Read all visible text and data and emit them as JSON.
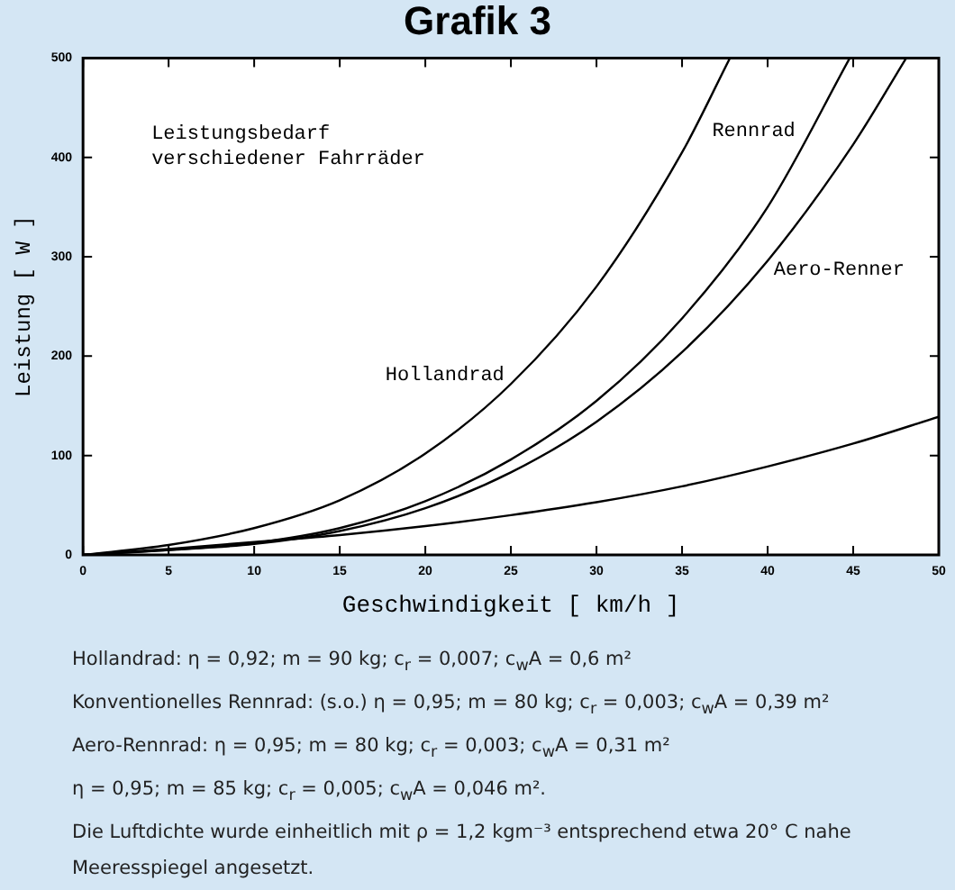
{
  "chart_data": {
    "type": "line",
    "title": "Grafik 3",
    "xlabel": "Geschwindigkeit [ km/h ]",
    "ylabel": "Leistung [ W ]",
    "xlim": [
      0,
      50
    ],
    "xticks": [
      0,
      5,
      10,
      15,
      20,
      25,
      30,
      35,
      40,
      45,
      50
    ],
    "ylim": [
      0,
      500
    ],
    "yticks": [
      0,
      100,
      200,
      300,
      400,
      500
    ],
    "grid": false,
    "legend": false,
    "marker": "none",
    "line_style": "solid",
    "series": [
      {
        "name": "Hollandrad",
        "color": "#000000",
        "x": [
          0,
          5,
          10,
          15,
          20,
          25,
          30,
          35,
          37.8
        ],
        "values": [
          0,
          10,
          27,
          55,
          102,
          172,
          270,
          405,
          500
        ]
      },
      {
        "name": "Rennrad",
        "color": "#000000",
        "x": [
          0,
          5,
          10,
          15,
          20,
          25,
          30,
          35,
          40,
          44.8
        ],
        "values": [
          0,
          5,
          12,
          27,
          54,
          96,
          155,
          238,
          350,
          500
        ]
      },
      {
        "name": "Aero-Renner",
        "color": "#000000",
        "x": [
          0,
          5,
          10,
          15,
          20,
          25,
          30,
          35,
          40,
          45,
          48.1
        ],
        "values": [
          0,
          5,
          11,
          24,
          47,
          83,
          134,
          204,
          296,
          413,
          500
        ]
      },
      {
        "color": "#000000",
        "x": [
          0,
          5,
          10,
          15,
          20,
          25,
          30,
          35,
          40,
          45,
          50
        ],
        "values": [
          0,
          6,
          13,
          20,
          29,
          40,
          53,
          69,
          89,
          112,
          139
        ]
      }
    ],
    "annotations": [
      "Leistungsbedarf\nverschiedener Fahrräder",
      "Hollandrad: η = 0,92; m = 90 kg; c$_{r}$ = 0,007; c$_{w}$A = 0,6 m²",
      "Konventionelles Rennrad: (s.o.) η = 0,95; m = 80 kg; c$_{r}$ = 0,003; c$_{w}$A = 0,39 m²",
      "Aero-Rennrad: η = 0,95; m = 80 kg; c$_{r}$ = 0,003; c$_{w}$A = 0,31 m²",
      "η = 0,95; m = 85 kg; c$_{r}$ = 0,005; c$_{w}$A = 0,046 m².",
      "Die Luftdichte wurde einheitlich mit ρ = 1,2 kgm⁻³ entsprechend etwa 20° C nahe Meeresspiegel angesetzt."
    ]
  }
}
